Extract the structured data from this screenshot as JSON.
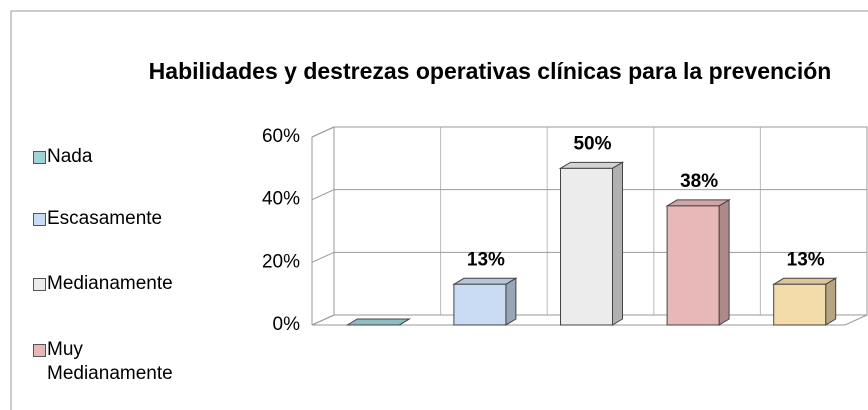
{
  "chart_data": {
    "type": "bar3d",
    "title": "Habilidades y destrezas operativas clínicas para la prevención",
    "categories": [
      "Nada",
      "Escasamente",
      "Medianamente",
      "Muy Medianamente",
      null
    ],
    "values": [
      0,
      13,
      50,
      38,
      13
    ],
    "value_labels": [
      null,
      "13%",
      "50%",
      "38%",
      "13%"
    ],
    "colors": [
      "#9fd3d8",
      "#c9dcf3",
      "#ececec",
      "#e8b7b8",
      "#f3dcaa"
    ],
    "ylim": [
      0,
      60
    ],
    "yticks": [
      {
        "value": 0,
        "label": "0%"
      },
      {
        "value": 20,
        "label": "20%"
      },
      {
        "value": 40,
        "label": "40%"
      },
      {
        "value": 60,
        "label": "60%"
      }
    ],
    "grid": true,
    "legend": "left"
  }
}
